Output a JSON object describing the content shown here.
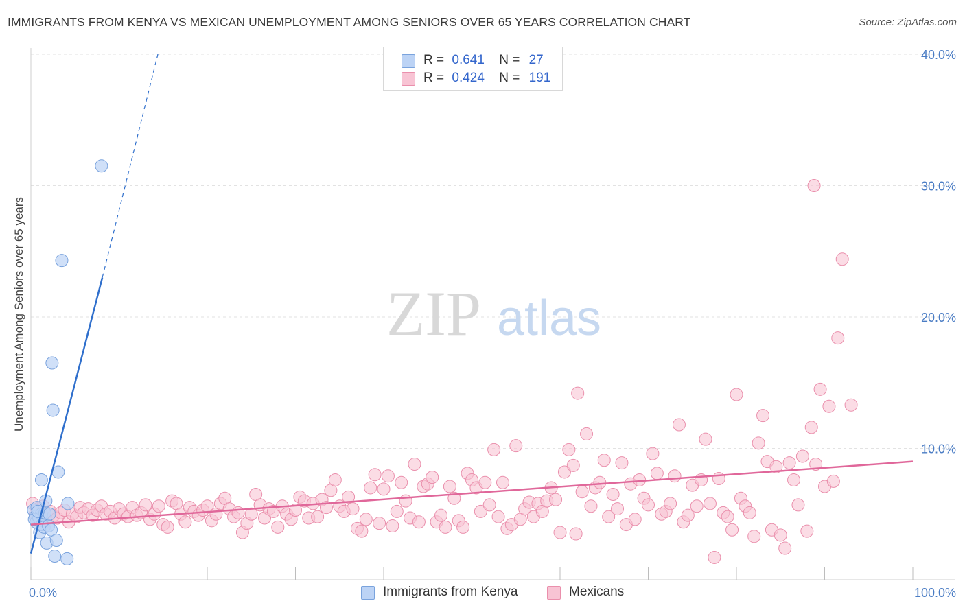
{
  "header": {
    "title": "IMMIGRANTS FROM KENYA VS MEXICAN UNEMPLOYMENT AMONG SENIORS OVER 65 YEARS CORRELATION CHART",
    "source": "Source: ZipAtlas.com"
  },
  "watermark": {
    "zip": "ZIP",
    "atlas": "atlas"
  },
  "legend": {
    "r_label": "R =",
    "n_label": "N =",
    "series": [
      {
        "r": "0.641",
        "n": "27"
      },
      {
        "r": "0.424",
        "n": "191"
      }
    ]
  },
  "colors": {
    "blue_fill": "#bcd3f5",
    "blue_stroke": "#7aa3dd",
    "blue_line": "#2f6fcc",
    "pink_fill": "#f8c4d4",
    "pink_stroke": "#ea8fac",
    "pink_line": "#e0679a",
    "tick_text": "#4a7cc4",
    "grid": "#e2e2e2"
  },
  "chart_data": {
    "type": "scatter",
    "title": "IMMIGRANTS FROM KENYA VS MEXICAN UNEMPLOYMENT AMONG SENIORS OVER 65 YEARS CORRELATION CHART",
    "xlabel": "",
    "ylabel": "Unemployment Among Seniors over 65 years",
    "xlim": [
      0,
      100
    ],
    "ylim": [
      0,
      42
    ],
    "x_ticks": [
      {
        "value": 0,
        "label": "0.0%"
      },
      {
        "value": 100,
        "label": "100.0%"
      }
    ],
    "y_ticks": [
      {
        "value": 10,
        "label": "10.0%"
      },
      {
        "value": 20,
        "label": "20.0%"
      },
      {
        "value": 30,
        "label": "30.0%"
      },
      {
        "value": 40,
        "label": "40.0%"
      }
    ],
    "legend_position": "bottom",
    "series": [
      {
        "name": "Immigrants from Kenya",
        "r": 0.641,
        "n": 27,
        "trend": {
          "x0": 0,
          "y0": 2.0,
          "x1": 8.1,
          "y1": 23.0,
          "dash_to_x": 14.4,
          "dash_to_y": 40.0
        },
        "points": [
          [
            0.3,
            5.3
          ],
          [
            0.5,
            4.8
          ],
          [
            0.7,
            5.5
          ],
          [
            0.6,
            4.4
          ],
          [
            0.9,
            4.7
          ],
          [
            1.0,
            3.6
          ],
          [
            1.2,
            5.0
          ],
          [
            1.3,
            4.2
          ],
          [
            1.5,
            4.0
          ],
          [
            1.6,
            5.1
          ],
          [
            1.7,
            6.0
          ],
          [
            1.8,
            2.8
          ],
          [
            2.0,
            4.1
          ],
          [
            2.1,
            5.0
          ],
          [
            2.3,
            3.8
          ],
          [
            2.4,
            16.5
          ],
          [
            2.5,
            12.9
          ],
          [
            2.7,
            1.8
          ],
          [
            2.9,
            3.0
          ],
          [
            3.1,
            8.2
          ],
          [
            3.5,
            24.3
          ],
          [
            4.1,
            1.6
          ],
          [
            4.2,
            5.8
          ],
          [
            8.0,
            31.5
          ],
          [
            1.2,
            7.6
          ],
          [
            0.4,
            4.6
          ],
          [
            0.8,
            5.2
          ]
        ]
      },
      {
        "name": "Mexicans",
        "r": 0.424,
        "n": 191,
        "trend": {
          "x0": 0,
          "y0": 4.2,
          "x1": 100,
          "y1": 9.0
        },
        "points": [
          [
            0.2,
            5.8
          ],
          [
            0.5,
            5.0
          ],
          [
            0.8,
            5.4
          ],
          [
            1.1,
            4.8
          ],
          [
            1.4,
            5.6
          ],
          [
            1.8,
            4.6
          ],
          [
            2.2,
            5.2
          ],
          [
            2.6,
            4.9
          ],
          [
            3.0,
            4.7
          ],
          [
            3.4,
            5.1
          ],
          [
            3.8,
            5.3
          ],
          [
            4.3,
            4.4
          ],
          [
            4.7,
            5.0
          ],
          [
            5.2,
            4.8
          ],
          [
            5.6,
            5.5
          ],
          [
            6.0,
            5.1
          ],
          [
            6.5,
            5.4
          ],
          [
            7.0,
            4.9
          ],
          [
            7.5,
            5.3
          ],
          [
            8.0,
            5.6
          ],
          [
            8.5,
            5.0
          ],
          [
            9.0,
            5.2
          ],
          [
            9.5,
            4.7
          ],
          [
            10.0,
            5.4
          ],
          [
            10.5,
            5.0
          ],
          [
            11.0,
            4.8
          ],
          [
            11.5,
            5.5
          ],
          [
            12.0,
            4.9
          ],
          [
            12.5,
            5.1
          ],
          [
            13.0,
            5.7
          ],
          [
            13.5,
            4.6
          ],
          [
            14.0,
            5.0
          ],
          [
            14.5,
            5.6
          ],
          [
            15.0,
            4.2
          ],
          [
            15.5,
            4.0
          ],
          [
            16.0,
            6.0
          ],
          [
            16.5,
            5.8
          ],
          [
            17.0,
            5.0
          ],
          [
            17.5,
            4.4
          ],
          [
            18.0,
            5.5
          ],
          [
            18.5,
            5.2
          ],
          [
            19.0,
            4.9
          ],
          [
            19.5,
            5.3
          ],
          [
            20.0,
            5.6
          ],
          [
            20.5,
            4.5
          ],
          [
            21.0,
            5.0
          ],
          [
            21.5,
            5.8
          ],
          [
            22.0,
            6.2
          ],
          [
            22.5,
            5.4
          ],
          [
            23.0,
            4.8
          ],
          [
            23.5,
            5.1
          ],
          [
            24.0,
            3.6
          ],
          [
            24.5,
            4.3
          ],
          [
            25.0,
            5.0
          ],
          [
            25.5,
            6.5
          ],
          [
            26.0,
            5.7
          ],
          [
            26.5,
            4.7
          ],
          [
            27.0,
            5.4
          ],
          [
            27.5,
            5.2
          ],
          [
            28.0,
            4.0
          ],
          [
            28.5,
            5.6
          ],
          [
            29.0,
            5.0
          ],
          [
            29.5,
            4.6
          ],
          [
            30.0,
            5.3
          ],
          [
            30.5,
            6.3
          ],
          [
            31.0,
            6.0
          ],
          [
            31.5,
            4.7
          ],
          [
            32.0,
            5.8
          ],
          [
            32.5,
            4.8
          ],
          [
            33.0,
            6.1
          ],
          [
            33.5,
            5.5
          ],
          [
            34.0,
            6.8
          ],
          [
            34.5,
            7.6
          ],
          [
            35.0,
            5.6
          ],
          [
            35.5,
            5.2
          ],
          [
            36.0,
            6.3
          ],
          [
            36.5,
            5.4
          ],
          [
            37.0,
            3.9
          ],
          [
            37.5,
            3.7
          ],
          [
            38.0,
            4.6
          ],
          [
            38.5,
            7.0
          ],
          [
            39.0,
            8.0
          ],
          [
            39.5,
            4.3
          ],
          [
            40.0,
            6.9
          ],
          [
            40.5,
            7.9
          ],
          [
            41.0,
            4.1
          ],
          [
            41.5,
            5.2
          ],
          [
            42.0,
            7.4
          ],
          [
            42.5,
            6.0
          ],
          [
            43.0,
            4.7
          ],
          [
            43.5,
            8.8
          ],
          [
            44.0,
            4.4
          ],
          [
            44.5,
            7.1
          ],
          [
            45.0,
            7.3
          ],
          [
            45.5,
            7.8
          ],
          [
            46.0,
            4.4
          ],
          [
            46.5,
            4.9
          ],
          [
            47.0,
            4.0
          ],
          [
            47.5,
            7.1
          ],
          [
            48.0,
            6.2
          ],
          [
            48.5,
            4.5
          ],
          [
            49.0,
            4.0
          ],
          [
            49.5,
            8.1
          ],
          [
            50.0,
            7.6
          ],
          [
            50.5,
            7.0
          ],
          [
            51.0,
            5.2
          ],
          [
            51.5,
            7.4
          ],
          [
            52.0,
            5.7
          ],
          [
            52.5,
            9.9
          ],
          [
            53.0,
            4.8
          ],
          [
            53.5,
            7.4
          ],
          [
            54.0,
            3.9
          ],
          [
            54.5,
            4.2
          ],
          [
            55.0,
            10.2
          ],
          [
            55.5,
            4.6
          ],
          [
            56.0,
            5.4
          ],
          [
            56.5,
            5.9
          ],
          [
            57.0,
            4.8
          ],
          [
            57.5,
            5.8
          ],
          [
            58.0,
            5.2
          ],
          [
            58.5,
            6.0
          ],
          [
            59.0,
            7.0
          ],
          [
            59.5,
            6.1
          ],
          [
            60.0,
            3.6
          ],
          [
            60.5,
            8.2
          ],
          [
            61.0,
            9.9
          ],
          [
            61.5,
            8.7
          ],
          [
            62.0,
            14.2
          ],
          [
            62.5,
            6.7
          ],
          [
            63.0,
            11.1
          ],
          [
            63.5,
            5.6
          ],
          [
            64.0,
            7.0
          ],
          [
            64.5,
            7.4
          ],
          [
            65.0,
            9.1
          ],
          [
            65.5,
            4.8
          ],
          [
            66.0,
            6.5
          ],
          [
            66.5,
            5.4
          ],
          [
            67.0,
            8.9
          ],
          [
            67.5,
            4.2
          ],
          [
            68.0,
            7.3
          ],
          [
            68.5,
            4.6
          ],
          [
            69.0,
            7.6
          ],
          [
            69.5,
            6.2
          ],
          [
            70.0,
            5.7
          ],
          [
            70.5,
            9.6
          ],
          [
            71.0,
            8.1
          ],
          [
            71.5,
            5.0
          ],
          [
            72.0,
            5.2
          ],
          [
            72.5,
            5.8
          ],
          [
            73.0,
            7.9
          ],
          [
            73.5,
            11.8
          ],
          [
            74.0,
            4.4
          ],
          [
            74.5,
            4.9
          ],
          [
            75.0,
            7.2
          ],
          [
            75.5,
            5.6
          ],
          [
            76.0,
            7.6
          ],
          [
            76.5,
            10.7
          ],
          [
            77.0,
            5.8
          ],
          [
            77.5,
            1.7
          ],
          [
            78.0,
            7.7
          ],
          [
            78.5,
            5.1
          ],
          [
            79.0,
            4.8
          ],
          [
            79.5,
            3.8
          ],
          [
            80.0,
            14.1
          ],
          [
            80.5,
            6.2
          ],
          [
            81.0,
            5.6
          ],
          [
            81.5,
            5.1
          ],
          [
            82.0,
            3.3
          ],
          [
            82.5,
            10.4
          ],
          [
            83.0,
            12.5
          ],
          [
            83.5,
            9.0
          ],
          [
            84.0,
            3.8
          ],
          [
            84.5,
            8.6
          ],
          [
            85.0,
            3.4
          ],
          [
            85.5,
            2.4
          ],
          [
            86.0,
            8.9
          ],
          [
            86.5,
            7.6
          ],
          [
            87.0,
            5.7
          ],
          [
            87.5,
            9.4
          ],
          [
            88.0,
            3.7
          ],
          [
            88.5,
            11.6
          ],
          [
            89.0,
            8.8
          ],
          [
            89.5,
            14.5
          ],
          [
            90.0,
            7.1
          ],
          [
            90.5,
            13.2
          ],
          [
            91.0,
            7.5
          ],
          [
            91.5,
            18.4
          ],
          [
            92.0,
            24.4
          ],
          [
            93.0,
            13.3
          ],
          [
            88.8,
            30.0
          ],
          [
            61.8,
            3.5
          ]
        ]
      }
    ]
  },
  "bottom_legend": [
    "Immigrants from Kenya",
    "Mexicans"
  ]
}
